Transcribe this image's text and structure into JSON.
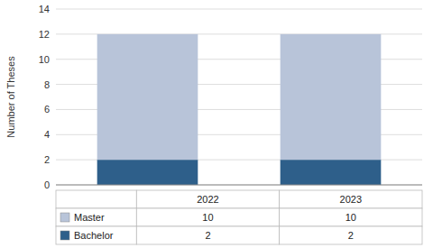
{
  "chart_data": {
    "type": "bar",
    "stacked": true,
    "categories": [
      "2022",
      "2023"
    ],
    "series": [
      {
        "name": "Bachelor",
        "color": "#2e5f8a",
        "values": [
          2,
          2
        ]
      },
      {
        "name": "Master",
        "color": "#b8c4d9",
        "values": [
          10,
          10
        ]
      }
    ],
    "y_label": "Number of Theses",
    "ylim": [
      0,
      14
    ],
    "yticks": [
      0,
      2,
      4,
      6,
      8,
      10,
      12,
      14
    ],
    "grid": true,
    "tick_labels": "y"
  }
}
